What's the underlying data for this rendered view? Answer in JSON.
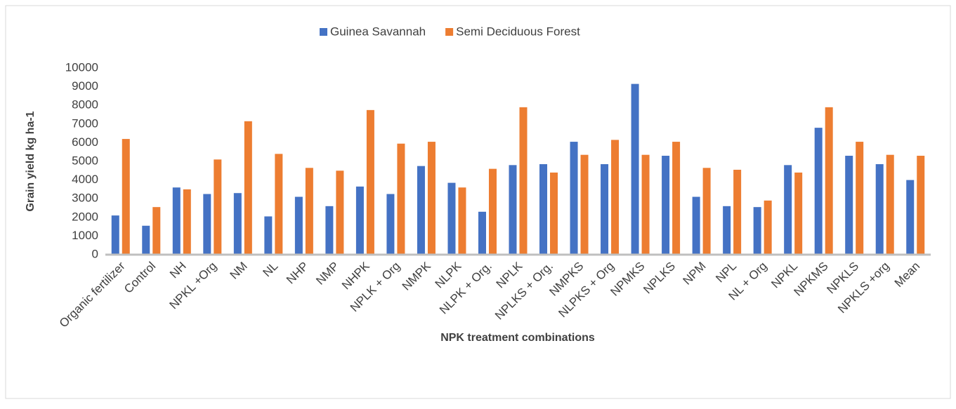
{
  "chart_data": {
    "type": "bar",
    "x_label": "NPK treatment combinations",
    "y_label": "Grain yield kg ha-1",
    "categories": [
      "Organic fertilizer",
      "Control",
      "NH",
      "NPKL +Org",
      "NM",
      "NL",
      "NHP",
      "NMP",
      "NHPK",
      "NPLK + Org",
      "NMPK",
      "NLPK",
      "NLPK + Org.",
      "NPLK",
      "NPLKS + Org.",
      "NMPKS",
      "NLPKS + Org",
      "NPMKS",
      "NPLKS",
      "NPM",
      "NPL",
      "NL + Org",
      "NPKL",
      "NPKMS",
      "NPKLS",
      "NPKLS +org",
      "Mean"
    ],
    "series": [
      {
        "name": "Guinea Savannah",
        "color": "#4472c4",
        "values": [
          2100,
          1550,
          3600,
          3250,
          3300,
          2050,
          3100,
          2600,
          3650,
          3250,
          4750,
          3850,
          2300,
          4800,
          4850,
          6050,
          4850,
          9150,
          5300,
          3100,
          2600,
          2550,
          4800,
          6800,
          5300,
          4850,
          4000
        ]
      },
      {
        "name": "Semi Deciduous Forest",
        "color": "#ed7d31",
        "values": [
          6200,
          2550,
          3500,
          5100,
          7150,
          5400,
          4650,
          4500,
          7750,
          5950,
          6050,
          3600,
          4600,
          7900,
          4400,
          5350,
          6150,
          5350,
          6050,
          4650,
          4550,
          2900,
          4400,
          7900,
          6050,
          5350,
          5300
        ]
      }
    ],
    "ylim": [
      0,
      10000
    ],
    "yticks": [
      0,
      1000,
      2000,
      3000,
      4000,
      5000,
      6000,
      7000,
      8000,
      9000,
      10000
    ],
    "grid": false,
    "legend": "top"
  }
}
